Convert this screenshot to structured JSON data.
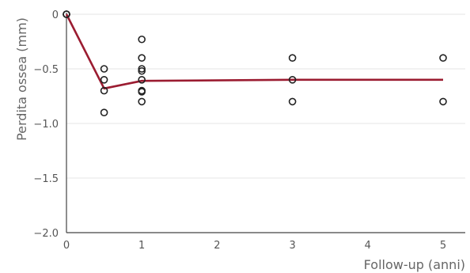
{
  "chart_data": {
    "type": "scatter",
    "xlabel": "Follow-up (anni)",
    "ylabel": "Perdita ossea (mm)",
    "xlim": [
      0,
      5
    ],
    "ylim": [
      -2.0,
      0
    ],
    "x_ticks": [
      0,
      1,
      2,
      3,
      4,
      5
    ],
    "y_ticks": [
      0,
      -0.5,
      -1.0,
      -1.5,
      -2.0
    ],
    "x_tick_labels": [
      "0",
      "1",
      "2",
      "3",
      "4",
      "5"
    ],
    "y_tick_labels": [
      "0",
      "-0.5",
      "-1.0",
      "-1.5",
      "-2.0"
    ],
    "grid": {
      "horizontal": true,
      "vertical": false
    },
    "points": [
      {
        "x": 0,
        "y": 0
      },
      {
        "x": 0,
        "y": 0
      },
      {
        "x": 0,
        "y": 0
      },
      {
        "x": 0.5,
        "y": -0.5
      },
      {
        "x": 0.5,
        "y": -0.6
      },
      {
        "x": 0.5,
        "y": -0.7
      },
      {
        "x": 0.5,
        "y": -0.9
      },
      {
        "x": 1,
        "y": -0.23
      },
      {
        "x": 1,
        "y": -0.4
      },
      {
        "x": 1,
        "y": -0.5
      },
      {
        "x": 1,
        "y": -0.52
      },
      {
        "x": 1,
        "y": -0.6
      },
      {
        "x": 1,
        "y": -0.7
      },
      {
        "x": 1,
        "y": -0.71
      },
      {
        "x": 1,
        "y": -0.8
      },
      {
        "x": 3,
        "y": -0.4
      },
      {
        "x": 3,
        "y": -0.6
      },
      {
        "x": 3,
        "y": -0.8
      },
      {
        "x": 5,
        "y": -0.4
      },
      {
        "x": 5,
        "y": -0.8
      }
    ],
    "trend_line": [
      {
        "x": 0,
        "y": 0
      },
      {
        "x": 0.5,
        "y": -0.68
      },
      {
        "x": 1,
        "y": -0.61
      },
      {
        "x": 3,
        "y": -0.6
      },
      {
        "x": 5,
        "y": -0.6
      }
    ],
    "colors": {
      "trend_line": "#9b1c31",
      "points": "#222222",
      "axis": "#444444",
      "grid": "#e6e6e6"
    }
  }
}
